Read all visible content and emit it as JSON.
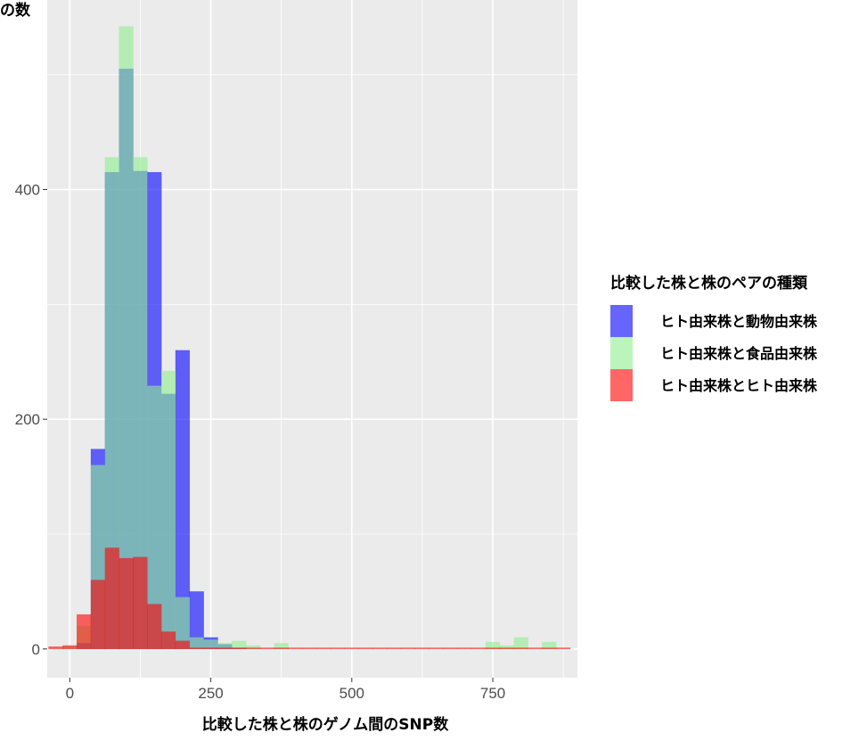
{
  "chart_data": {
    "type": "bar",
    "title": "",
    "ylabel": "の数",
    "xlabel": "比較した株と株のゲノム間のSNP数",
    "xlim": [
      -40,
      900
    ],
    "ylim": [
      -25,
      565
    ],
    "x_ticks": [
      0,
      250,
      500,
      750
    ],
    "y_ticks": [
      0,
      200,
      400
    ],
    "grid": true,
    "bin_width": 25,
    "legend": {
      "title": "比較した株と株のペアの種類",
      "position": "right"
    },
    "series": [
      {
        "name": "ヒト由来株と動物由来株",
        "color": "#0000ff",
        "x": [
          25,
          50,
          75,
          100,
          125,
          150,
          175,
          200,
          225,
          250,
          275,
          300
        ],
        "values": [
          5,
          174,
          415,
          505,
          416,
          415,
          222,
          260,
          50,
          10,
          4,
          1
        ]
      },
      {
        "name": "ヒト由来株と食品由来株",
        "color": "#90ee90",
        "x": [
          0,
          25,
          50,
          75,
          100,
          125,
          150,
          175,
          200,
          225,
          250,
          275,
          300,
          325,
          375,
          750,
          775,
          800,
          850
        ],
        "values": [
          2,
          20,
          160,
          428,
          542,
          428,
          229,
          242,
          45,
          10,
          8,
          5,
          7,
          3,
          5,
          6,
          3,
          10,
          6
        ]
      },
      {
        "name": "ヒト由来株とヒト由来株",
        "color": "#ff0000",
        "x": [
          -25,
          0,
          25,
          50,
          75,
          100,
          125,
          150,
          175,
          200,
          225,
          250,
          275,
          300,
          325,
          350,
          375,
          400,
          425,
          450,
          475,
          500,
          525,
          550,
          575,
          600,
          625,
          650,
          675,
          700,
          725,
          750,
          775,
          800,
          825,
          850,
          875
        ],
        "values": [
          2,
          3,
          30,
          60,
          88,
          79,
          80,
          39,
          15,
          7,
          1,
          1,
          1,
          1,
          1,
          1,
          1,
          1,
          1,
          1,
          1,
          1,
          1,
          1,
          1,
          1,
          1,
          1,
          1,
          1,
          1,
          1,
          1,
          1,
          1,
          1,
          1
        ]
      }
    ]
  }
}
